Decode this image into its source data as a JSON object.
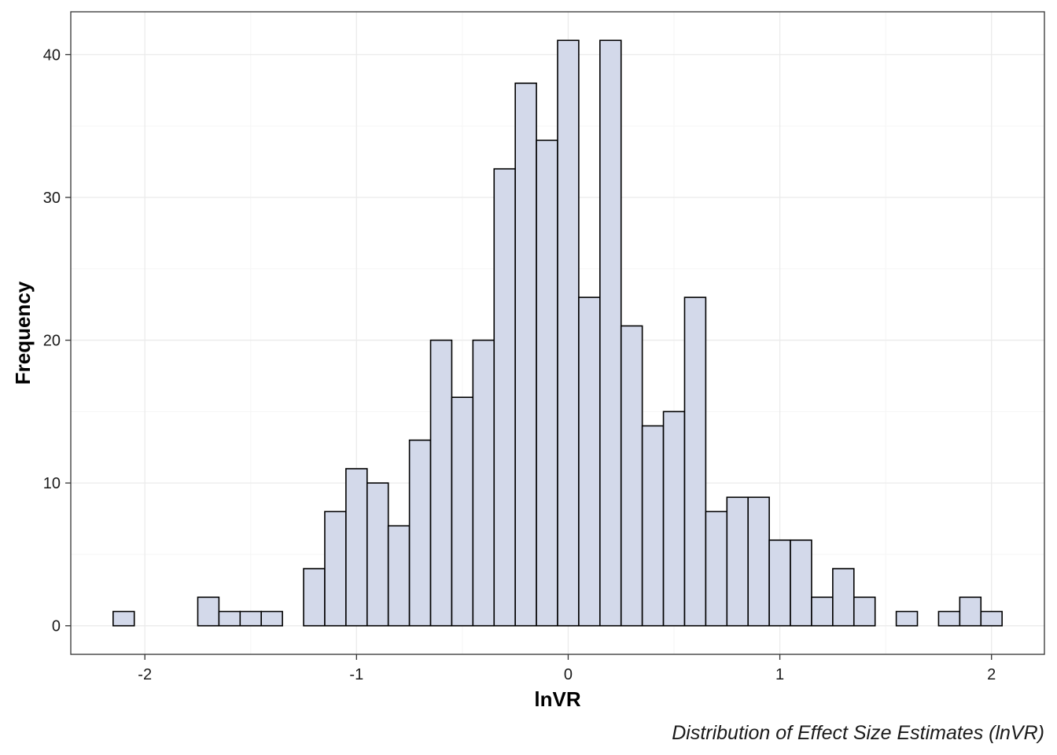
{
  "chart_data": {
    "type": "bar",
    "subtype": "histogram",
    "xlabel": "lnVR",
    "ylabel": "Frequency",
    "caption": "Distribution of Effect Size Estimates (lnVR)",
    "xlim": [
      -2.35,
      2.25
    ],
    "ylim": [
      -2,
      43
    ],
    "xticks": [
      -2,
      -1,
      0,
      1,
      2
    ],
    "xtick_labels": [
      "-2",
      "-1",
      "0",
      "1",
      "2"
    ],
    "yticks": [
      0,
      10,
      20,
      30,
      40
    ],
    "ytick_labels": [
      "0",
      "10",
      "20",
      "30",
      "40"
    ],
    "grid": true,
    "bin_width": 0.1,
    "bin_centers": [
      -2.1,
      -2.0,
      -1.9,
      -1.8,
      -1.7,
      -1.6,
      -1.5,
      -1.4,
      -1.3,
      -1.2,
      -1.1,
      -1.0,
      -0.9,
      -0.8,
      -0.7,
      -0.6,
      -0.5,
      -0.4,
      -0.3,
      -0.2,
      -0.1,
      0.0,
      0.1,
      0.2,
      0.3,
      0.4,
      0.5,
      0.6,
      0.7,
      0.8,
      0.9,
      1.0,
      1.1,
      1.2,
      1.3,
      1.4,
      1.5,
      1.6,
      1.7,
      1.8,
      1.9,
      2.0
    ],
    "counts": [
      1,
      0,
      0,
      0,
      2,
      1,
      1,
      1,
      0,
      4,
      8,
      11,
      10,
      7,
      13,
      20,
      16,
      20,
      32,
      38,
      34,
      41,
      23,
      41,
      21,
      14,
      15,
      23,
      8,
      9,
      9,
      6,
      6,
      2,
      4,
      2,
      0,
      1,
      0,
      1,
      2,
      1
    ],
    "colors": {
      "bar_fill": "#d3d9ea",
      "bar_stroke": "#000000",
      "grid_major": "#ebebeb",
      "grid_minor": "#f5f5f5",
      "panel_border": "#333333"
    }
  }
}
